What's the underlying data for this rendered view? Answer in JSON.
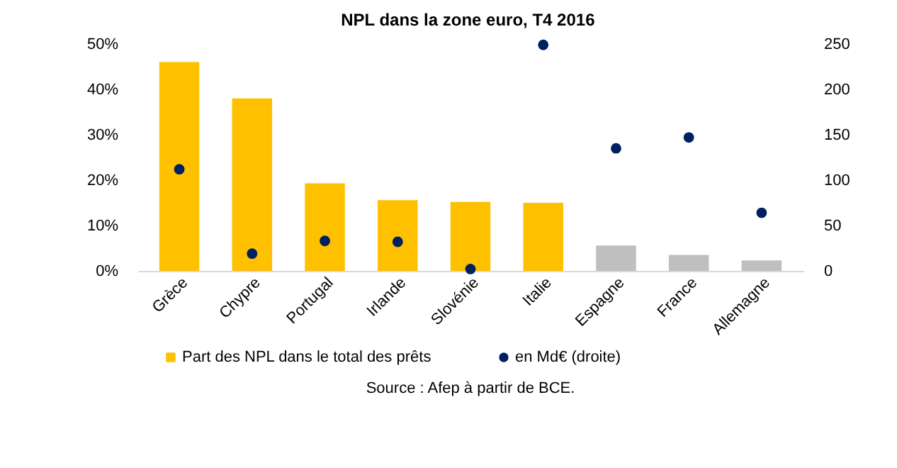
{
  "chart_data": {
    "type": "bar",
    "title": "NPL dans la zone euro, T4 2016",
    "categories": [
      "Grèce",
      "Chypre",
      "Portugal",
      "Irlande",
      "Slovénie",
      "Italie",
      "Espagne",
      "France",
      "Allemagne"
    ],
    "series": [
      {
        "name": "Part des NPL dans le total des prêts",
        "color": "#ffc000",
        "colors": [
          "#ffc000",
          "#ffc000",
          "#ffc000",
          "#ffc000",
          "#ffc000",
          "#ffc000",
          "#bfbfbf",
          "#bfbfbf",
          "#bfbfbf"
        ],
        "values": [
          46,
          38,
          19.3,
          15.6,
          15.2,
          15.0,
          5.6,
          3.5,
          2.3
        ]
      },
      {
        "name": "en Md€ (droite)",
        "type": "scatter",
        "axis": "y2",
        "color": "#002060",
        "values": [
          112,
          19,
          33,
          32,
          2,
          249,
          135,
          147,
          64
        ]
      }
    ],
    "ylim": [
      0,
      50
    ],
    "yticks": [
      {
        "value": 0,
        "label": "0%"
      },
      {
        "value": 10,
        "label": "10%"
      },
      {
        "value": 20,
        "label": "20%"
      },
      {
        "value": 30,
        "label": "30%"
      },
      {
        "value": 40,
        "label": "40%"
      },
      {
        "value": 50,
        "label": "50%"
      }
    ],
    "y2lim": [
      0,
      250
    ],
    "y2ticks": [
      0,
      50,
      100,
      150,
      200,
      250
    ],
    "grid": false,
    "legend": "bottom",
    "annotations": [
      "Source : Afep à partir de BCE."
    ]
  }
}
